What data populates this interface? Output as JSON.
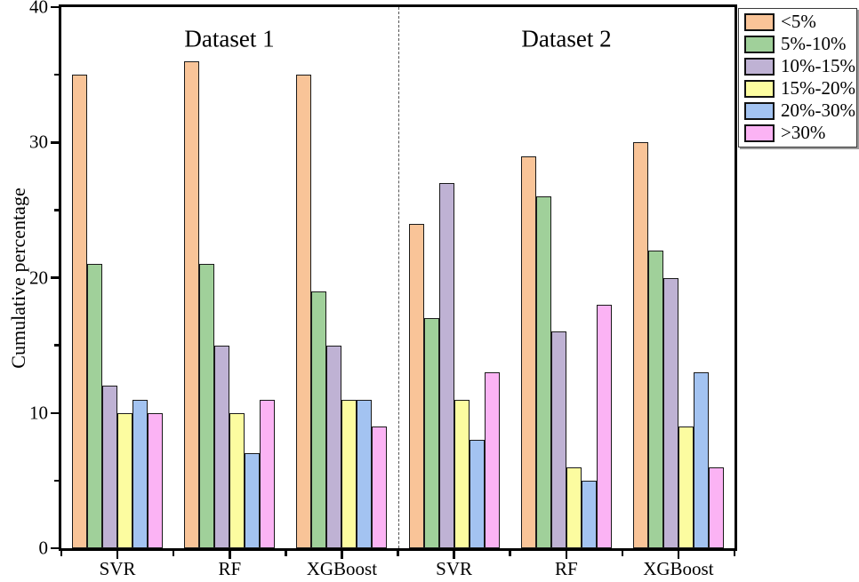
{
  "figure": {
    "y_axis_title": "Cumulative percentage"
  },
  "chart_data": {
    "type": "bar",
    "title_left": "Dataset 1",
    "title_right": "Dataset 2",
    "ylabel": "Cumulative percentage",
    "xlabel": "",
    "ylim": [
      0,
      40
    ],
    "y_major_ticks": [
      0,
      10,
      20,
      30,
      40
    ],
    "y_minor_ticks": [
      5,
      15,
      25,
      35
    ],
    "grid": "off",
    "legend_position": "outside-top-right",
    "categories": [
      "SVR",
      "RF",
      "XGBoost",
      "SVR",
      "RF",
      "XGBoost"
    ],
    "category_panels": [
      "Dataset 1",
      "Dataset 1",
      "Dataset 1",
      "Dataset 2",
      "Dataset 2",
      "Dataset 2"
    ],
    "panel_divider_after_category_index": 2,
    "series": [
      {
        "name": "<5%",
        "color": "#F9C498",
        "values": [
          35,
          36,
          35,
          24,
          29,
          30
        ]
      },
      {
        "name": "5%-10%",
        "color": "#A0D09A",
        "values": [
          21,
          21,
          19,
          17,
          26,
          22
        ]
      },
      {
        "name": "10%-15%",
        "color": "#BFB2D4",
        "values": [
          12,
          15,
          15,
          27,
          16,
          20
        ]
      },
      {
        "name": "15%-20%",
        "color": "#FCFCA0",
        "values": [
          10,
          10,
          11,
          11,
          6,
          9
        ]
      },
      {
        "name": "20%-30%",
        "color": "#A3C3F1",
        "values": [
          11,
          7,
          11,
          8,
          5,
          13
        ]
      },
      {
        "name": ">30%",
        "color": "#FBB3F4",
        "values": [
          10,
          11,
          9,
          13,
          18,
          6
        ]
      }
    ]
  }
}
